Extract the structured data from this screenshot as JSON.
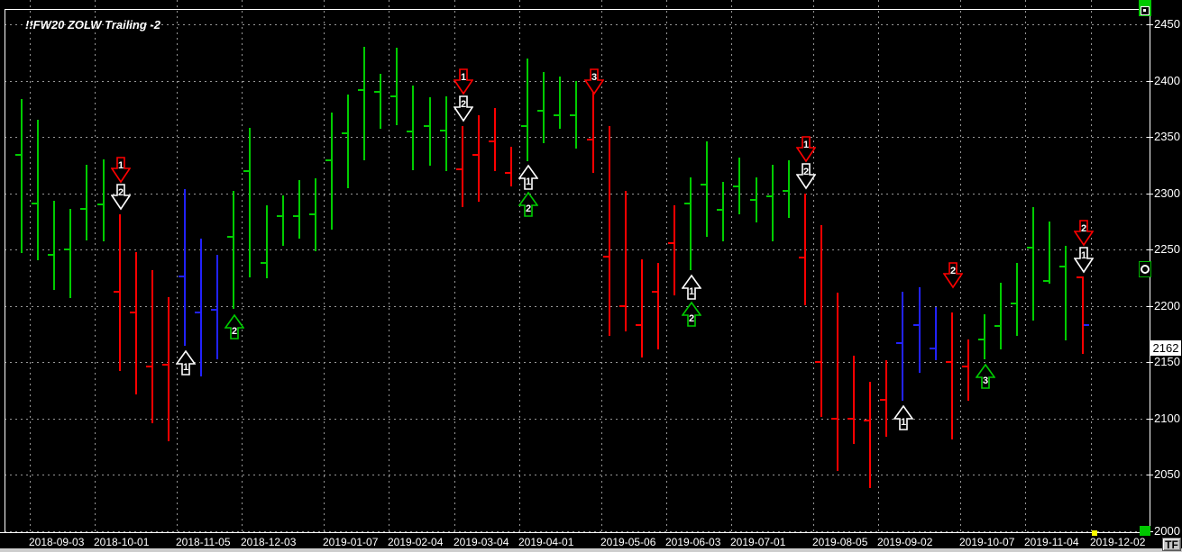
{
  "title": "!!FW20 ZOLW Trailing -2",
  "colors": {
    "background": "#000000",
    "frame": "#ffffff",
    "grid": "#969696",
    "up": "#00cc00",
    "down": "#ff0000",
    "neutral": "#2222ff",
    "axis_text": "#ffffff",
    "last_price_bg": "#ffffff",
    "last_price_text": "#000000",
    "marker_yellow": "#ffff00",
    "handle_green": "#00c800",
    "arrow_white": "#ffffff",
    "arrow_red": "#ff0000",
    "arrow_green": "#00cc00"
  },
  "y_axis": {
    "tick_labels": [
      2450,
      2400,
      2350,
      2300,
      2250,
      2200,
      2150,
      2100,
      2050,
      2000
    ],
    "last_price": "2162"
  },
  "x_axis": {
    "tick_labels": [
      "2018-09-03",
      "2018-10-01",
      "2018-11-05",
      "2018-12-03",
      "2019-01-07",
      "2019-02-04",
      "2019-03-04",
      "2019-04-01",
      "2019-05-06",
      "2019-06-03",
      "2019-07-01",
      "2019-08-05",
      "2019-09-02",
      "2019-10-07",
      "2019-11-04",
      "2019-12-02"
    ],
    "tick_week_index": [
      0,
      4,
      9,
      13,
      18,
      22,
      26,
      30,
      35,
      39,
      43,
      48,
      52,
      57,
      61,
      65
    ]
  },
  "toolbar": {
    "tf_button": "TF"
  },
  "chart_data": {
    "type": "bar",
    "title": "!!FW20 ZOLW Trailing -2",
    "ylabel": "price",
    "ylim": [
      2000,
      2470
    ],
    "y_ticks": [
      2450,
      2400,
      2350,
      2300,
      2250,
      2200,
      2150,
      2100,
      2050,
      2000
    ],
    "x_tick_labels": [
      "2018-09-03",
      "2018-10-01",
      "2018-11-05",
      "2018-12-03",
      "2019-01-07",
      "2019-02-04",
      "2019-03-04",
      "2019-04-01",
      "2019-05-06",
      "2019-06-03",
      "2019-07-01",
      "2019-08-05",
      "2019-09-02",
      "2019-10-07",
      "2019-11-04",
      "2019-12-02"
    ],
    "x_tick_bar_index": [
      0,
      4,
      9,
      13,
      18,
      22,
      26,
      30,
      35,
      39,
      43,
      48,
      52,
      57,
      61,
      65
    ],
    "last_price": 2162,
    "last_bar_blue_tick": 2183,
    "grid": true,
    "bar_color_legend": {
      "g": "uptrend",
      "r": "downtrend",
      "b": "neutral"
    },
    "bars": [
      [
        "g",
        2384,
        2247,
        2334
      ],
      [
        "g",
        2365,
        2240,
        2291
      ],
      [
        "g",
        2293,
        2214,
        2245
      ],
      [
        "g",
        2286,
        2207,
        2250
      ],
      [
        "g",
        2325,
        2258,
        2286
      ],
      [
        "g",
        2330,
        2257,
        2290
      ],
      [
        "r",
        2281,
        2142,
        2213
      ],
      [
        "r",
        2248,
        2122,
        2194
      ],
      [
        "r",
        2232,
        2096,
        2146
      ],
      [
        "r",
        2208,
        2080,
        2148
      ],
      [
        "b",
        2304,
        2165,
        2226
      ],
      [
        "b",
        2260,
        2138,
        2194
      ],
      [
        "b",
        2245,
        2152,
        2197
      ],
      [
        "g",
        2302,
        2197,
        2261
      ],
      [
        "g",
        2358,
        2225,
        2320
      ],
      [
        "g",
        2289,
        2224,
        2238
      ],
      [
        "g",
        2298,
        2253,
        2280
      ],
      [
        "g",
        2312,
        2260,
        2280
      ],
      [
        "g",
        2313,
        2248,
        2281
      ],
      [
        "g",
        2372,
        2268,
        2329
      ],
      [
        "g",
        2388,
        2305,
        2353
      ],
      [
        "g",
        2430,
        2329,
        2392
      ],
      [
        "g",
        2406,
        2357,
        2390
      ],
      [
        "g",
        2429,
        2360,
        2386
      ],
      [
        "g",
        2396,
        2321,
        2355
      ],
      [
        "g",
        2385,
        2324,
        2360
      ],
      [
        "g",
        2386,
        2320,
        2356
      ],
      [
        "r",
        2360,
        2288,
        2321
      ],
      [
        "r",
        2369,
        2292,
        2334
      ],
      [
        "r",
        2376,
        2320,
        2346
      ],
      [
        "r",
        2341,
        2306,
        2318
      ],
      [
        "g",
        2420,
        2329,
        2360
      ],
      [
        "g",
        2408,
        2345,
        2373
      ],
      [
        "g",
        2404,
        2358,
        2369
      ],
      [
        "g",
        2400,
        2340,
        2369
      ],
      [
        "r",
        2390,
        2318,
        2348
      ],
      [
        "r",
        2360,
        2174,
        2244
      ],
      [
        "r",
        2302,
        2177,
        2200
      ],
      [
        "r",
        2241,
        2154,
        2183
      ],
      [
        "r",
        2238,
        2161,
        2213
      ],
      [
        "r",
        2289,
        2209,
        2256
      ],
      [
        "g",
        2314,
        2232,
        2291
      ],
      [
        "g",
        2346,
        2261,
        2308
      ],
      [
        "g",
        2310,
        2257,
        2285
      ],
      [
        "g",
        2332,
        2282,
        2306
      ],
      [
        "g",
        2314,
        2274,
        2294
      ],
      [
        "g",
        2325,
        2257,
        2297
      ],
      [
        "g",
        2329,
        2278,
        2302
      ],
      [
        "r",
        2300,
        2201,
        2243
      ],
      [
        "r",
        2272,
        2102,
        2150
      ],
      [
        "r",
        2212,
        2054,
        2100
      ],
      [
        "r",
        2156,
        2078,
        2100
      ],
      [
        "r",
        2133,
        2039,
        2098
      ],
      [
        "r",
        2152,
        2084,
        2117
      ],
      [
        "b",
        2213,
        2116,
        2167
      ],
      [
        "b",
        2217,
        2141,
        2183
      ],
      [
        "b",
        2199,
        2152,
        2162
      ],
      [
        "r",
        2194,
        2081,
        2150
      ],
      [
        "r",
        2170,
        2116,
        2146
      ],
      [
        "g",
        2193,
        2153,
        2170
      ],
      [
        "g",
        2221,
        2162,
        2182
      ],
      [
        "g",
        2238,
        2173,
        2202
      ],
      [
        "g",
        2288,
        2187,
        2252
      ],
      [
        "g",
        2275,
        2220,
        2222
      ],
      [
        "g",
        2253,
        2169,
        2235
      ],
      [
        "r",
        2225,
        2157,
        2225
      ]
    ],
    "signals": [
      {
        "bar": 6,
        "dir": "down",
        "color": "white",
        "label": "2",
        "stack": 0
      },
      {
        "bar": 6,
        "dir": "down",
        "color": "red",
        "label": "1",
        "stack": 1
      },
      {
        "bar": 10,
        "dir": "up",
        "color": "white",
        "label": "1",
        "stack": 0
      },
      {
        "bar": 13,
        "dir": "up",
        "color": "green",
        "label": "2",
        "stack": 0
      },
      {
        "bar": 27,
        "dir": "down",
        "color": "white",
        "label": "2",
        "stack": 0
      },
      {
        "bar": 27,
        "dir": "down",
        "color": "red",
        "label": "1",
        "stack": 1
      },
      {
        "bar": 31,
        "dir": "up",
        "color": "white",
        "label": "1",
        "stack": 0
      },
      {
        "bar": 31,
        "dir": "up",
        "color": "green",
        "label": "2",
        "stack": 1
      },
      {
        "bar": 35,
        "dir": "down",
        "color": "red",
        "label": "3",
        "stack": 0,
        "dy": 8
      },
      {
        "bar": 41,
        "dir": "up",
        "color": "white",
        "label": "1",
        "stack": 0
      },
      {
        "bar": 41,
        "dir": "up",
        "color": "green",
        "label": "2",
        "stack": 1
      },
      {
        "bar": 48,
        "dir": "down",
        "color": "white",
        "label": "2",
        "stack": 0
      },
      {
        "bar": 48,
        "dir": "down",
        "color": "red",
        "label": "1",
        "stack": 1
      },
      {
        "bar": 54,
        "dir": "up",
        "color": "white",
        "label": "1",
        "stack": 0
      },
      {
        "bar": 57,
        "dir": "down",
        "color": "red",
        "label": "2",
        "stack": 0,
        "dy": -22
      },
      {
        "bar": 59,
        "dir": "up",
        "color": "green",
        "label": "3",
        "stack": 0
      },
      {
        "bar": 65,
        "dir": "down",
        "color": "white",
        "label": "1",
        "stack": 0
      },
      {
        "bar": 65,
        "dir": "down",
        "color": "red",
        "label": "2",
        "stack": 1
      }
    ]
  }
}
